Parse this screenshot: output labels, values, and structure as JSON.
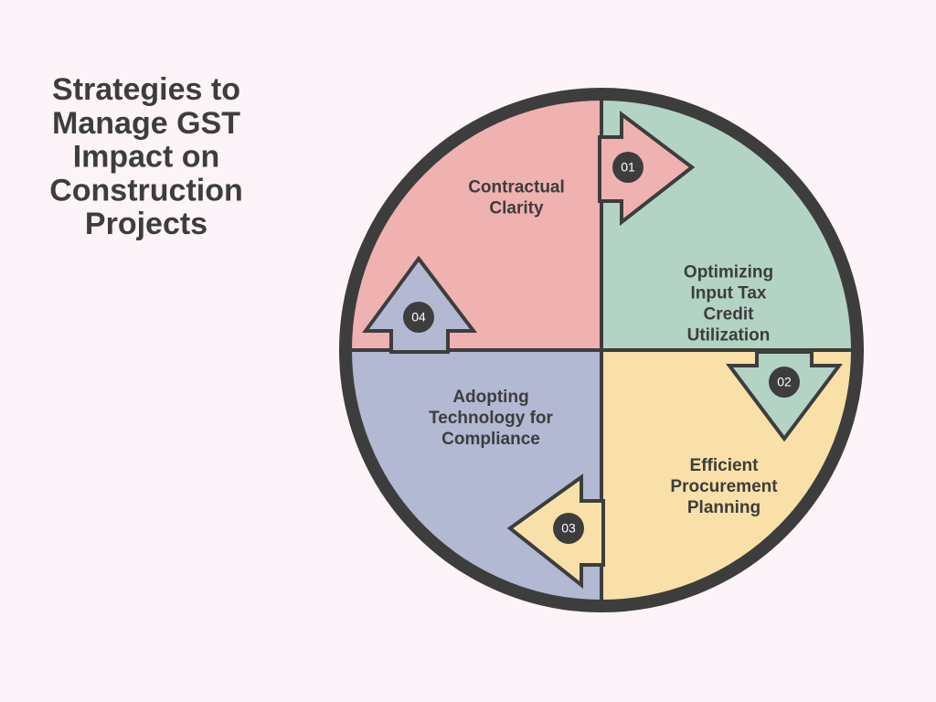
{
  "title": [
    "Strategies to",
    "Manage GST",
    "Impact on",
    "Construction",
    "Projects"
  ],
  "segments": [
    {
      "number": "01",
      "label": [
        "Contractual",
        "Clarity"
      ]
    },
    {
      "number": "02",
      "label": [
        "Optimizing",
        "Input Tax",
        "Credit",
        "Utilization"
      ]
    },
    {
      "number": "03",
      "label": [
        "Efficient",
        "Procurement",
        "Planning"
      ]
    },
    {
      "number": "04",
      "label": [
        "Adopting",
        "Technology for",
        "Compliance"
      ]
    }
  ]
}
